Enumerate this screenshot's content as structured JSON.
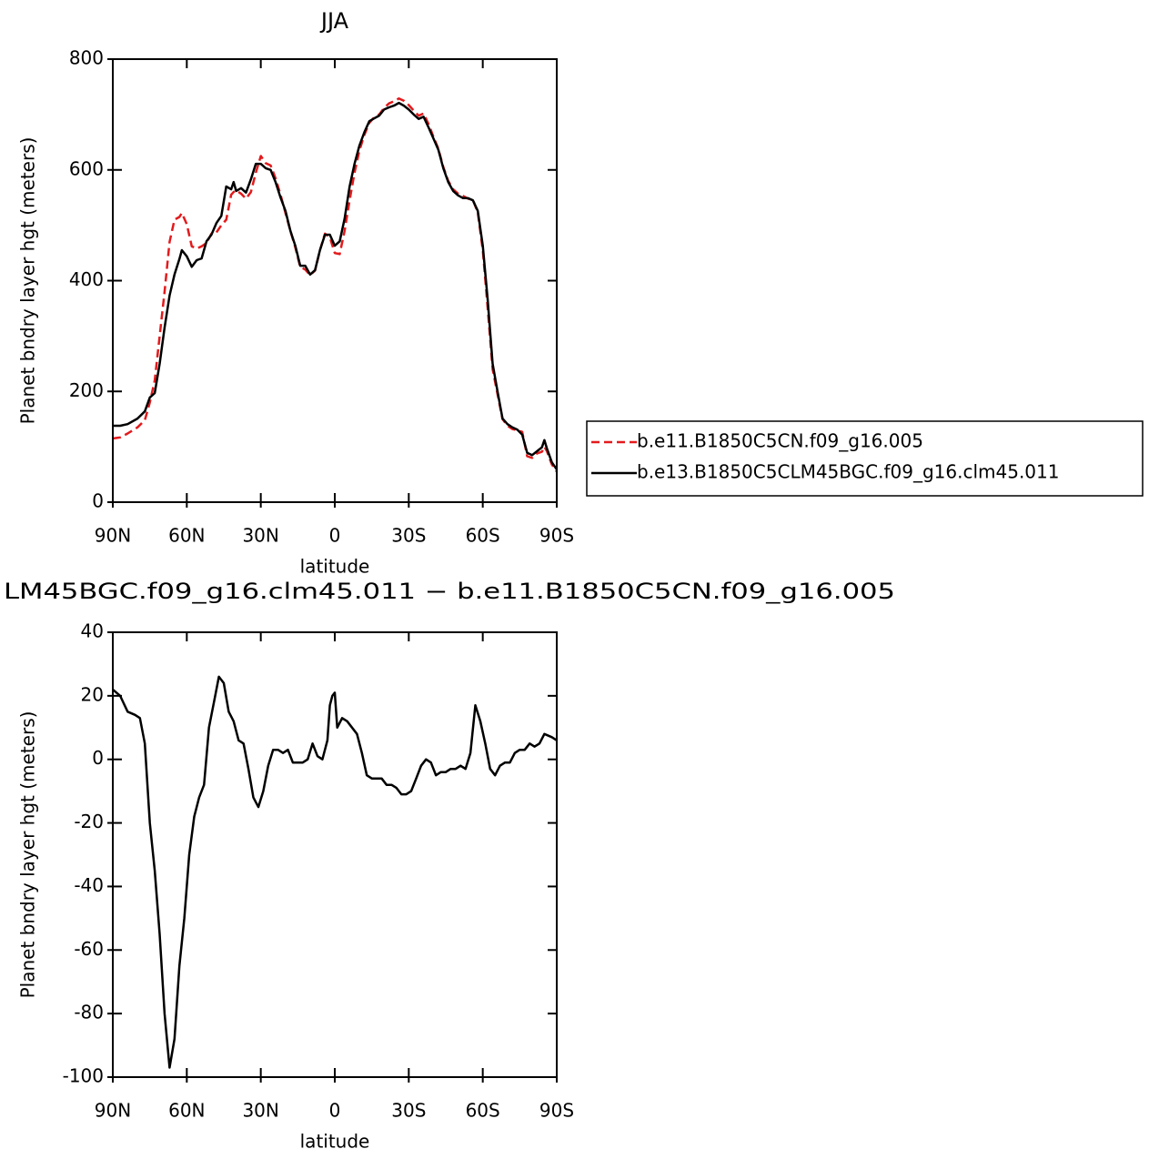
{
  "chart_data": [
    {
      "type": "line",
      "title": "JJA",
      "xlabel": "latitude",
      "ylabel": "Planet bndry layer hgt (meters)",
      "x": [
        90,
        87,
        84,
        80,
        77,
        75,
        73,
        71,
        69,
        67,
        65,
        63,
        62,
        60,
        58,
        56,
        54,
        52,
        50,
        48,
        46,
        44,
        42,
        41,
        40,
        38,
        36,
        34,
        32,
        30,
        28,
        26,
        24,
        22,
        20,
        18,
        16,
        14,
        12,
        10,
        8,
        6,
        4,
        2,
        0,
        -2,
        -4,
        -6,
        -8,
        -10,
        -12,
        -14,
        -16,
        -18,
        -20,
        -22,
        -24,
        -26,
        -28,
        -30,
        -32,
        -34,
        -36,
        -38,
        -40,
        -42,
        -44,
        -46,
        -48,
        -50,
        -52,
        -54,
        -56,
        -58,
        -60,
        -62,
        -64,
        -66,
        -68,
        -70,
        -72,
        -74,
        -76,
        -78,
        -80,
        -82,
        -84,
        -85,
        -86,
        -88,
        -90
      ],
      "series": [
        {
          "name": "b.e11.B1850C5CN.f09_g16.005",
          "color": "#e31a1c",
          "line_style": "dashed",
          "values": [
            115,
            117,
            124,
            135,
            148,
            180,
            220,
            300,
            380,
            470,
            510,
            515,
            522,
            502,
            462,
            458,
            462,
            468,
            485,
            487,
            500,
            510,
            555,
            560,
            563,
            557,
            548,
            560,
            595,
            625,
            612,
            608,
            585,
            555,
            522,
            490,
            460,
            425,
            420,
            410,
            418,
            455,
            485,
            478,
            450,
            448,
            490,
            545,
            595,
            635,
            663,
            685,
            695,
            700,
            712,
            720,
            724,
            729,
            725,
            717,
            707,
            698,
            702,
            683,
            660,
            638,
            605,
            580,
            565,
            557,
            553,
            548,
            546,
            523,
            455,
            350,
            240,
            195,
            150,
            138,
            132,
            130,
            127,
            83,
            80,
            88,
            91,
            100,
            92,
            68,
            55
          ]
        },
        {
          "name": "b.e13.B1850C5CLM45BGC.f09_g16.clm45.011",
          "color": "#000000",
          "line_style": "solid",
          "values": [
            138,
            138,
            141,
            151,
            164,
            189,
            197,
            250,
            315,
            373,
            411,
            439,
            455,
            444,
            425,
            437,
            440,
            471,
            483,
            504,
            517,
            570,
            565,
            578,
            562,
            567,
            559,
            583,
            611,
            611,
            603,
            600,
            578,
            550,
            526,
            490,
            463,
            427,
            427,
            411,
            419,
            455,
            483,
            483,
            463,
            471,
            512,
            570,
            611,
            644,
            668,
            688,
            693,
            698,
            709,
            713,
            716,
            721,
            716,
            709,
            700,
            692,
            696,
            677,
            657,
            636,
            603,
            578,
            562,
            554,
            549,
            549,
            545,
            526,
            463,
            365,
            250,
            200,
            151,
            141,
            135,
            131,
            122,
            89,
            85,
            92,
            99,
            112,
            97,
            72,
            59
          ]
        }
      ],
      "xlim": [
        90,
        -90
      ],
      "xticks": [
        {
          "value": 90,
          "label": "90N"
        },
        {
          "value": 60,
          "label": "60N"
        },
        {
          "value": 30,
          "label": "30N"
        },
        0,
        {
          "value": -30,
          "label": "30S"
        },
        {
          "value": -60,
          "label": "60S"
        },
        {
          "value": -90,
          "label": "90S"
        }
      ],
      "ylim": [
        0,
        800
      ],
      "yticks": [
        0,
        200,
        400,
        600,
        800
      ],
      "legend": "outside-right"
    },
    {
      "type": "line",
      "title": "LM45BGC.f09_g16.clm45.011 − b.e11.B1850C5CN.f09_g16.005",
      "xlabel": "latitude",
      "ylabel": "Planet bndry layer hgt (meters)",
      "x": [
        90,
        87,
        84,
        81,
        79,
        77,
        75,
        73,
        71,
        69,
        67,
        65,
        63,
        61,
        59,
        57,
        55,
        53,
        51,
        49,
        47,
        45,
        43,
        41,
        39,
        37,
        35,
        33,
        31,
        29,
        27,
        25,
        23,
        21,
        19,
        17,
        15,
        13,
        11,
        9,
        7,
        5,
        3,
        2,
        1,
        0,
        -1,
        -3,
        -5,
        -7,
        -9,
        -11,
        -13,
        -15,
        -17,
        -19,
        -21,
        -23,
        -25,
        -27,
        -29,
        -31,
        -33,
        -35,
        -37,
        -39,
        -41,
        -43,
        -45,
        -47,
        -49,
        -51,
        -53,
        -55,
        -57,
        -59,
        -61,
        -63,
        -65,
        -67,
        -69,
        -71,
        -73,
        -75,
        -77,
        -79,
        -81,
        -83,
        -85,
        -88,
        -90
      ],
      "series": [
        {
          "color": "#000000",
          "line_style": "solid",
          "values": [
            22,
            20,
            15,
            14,
            13,
            5,
            -20,
            -35,
            -55,
            -80,
            -97,
            -88,
            -65,
            -50,
            -30,
            -18,
            -12,
            -8,
            10,
            18,
            26,
            24,
            15,
            12,
            6,
            5,
            -3,
            -12,
            -15,
            -10,
            -2,
            3,
            3,
            2,
            3,
            -1,
            -1,
            -1,
            0,
            5,
            1,
            0,
            6,
            17,
            20,
            21,
            10,
            13,
            12,
            10,
            8,
            2,
            -5,
            -6,
            -6,
            -6,
            -8,
            -8,
            -9,
            -11,
            -11,
            -10,
            -6,
            -2,
            0,
            -1,
            -5,
            -4,
            -4,
            -3,
            -3,
            -2,
            -3,
            2,
            17,
            12,
            5,
            -3,
            -5,
            -2,
            -1,
            -1,
            2,
            3,
            3,
            5,
            4,
            5,
            8,
            7,
            6
          ]
        }
      ],
      "xlim": [
        90,
        -90
      ],
      "xticks": [
        {
          "value": 90,
          "label": "90N"
        },
        {
          "value": 60,
          "label": "60N"
        },
        {
          "value": 30,
          "label": "30N"
        },
        0,
        {
          "value": -30,
          "label": "30S"
        },
        {
          "value": -60,
          "label": "60S"
        },
        {
          "value": -90,
          "label": "90S"
        }
      ],
      "ylim": [
        -100,
        40
      ],
      "yticks": [
        -100,
        -80,
        -60,
        -40,
        -20,
        0,
        20,
        40
      ]
    }
  ]
}
